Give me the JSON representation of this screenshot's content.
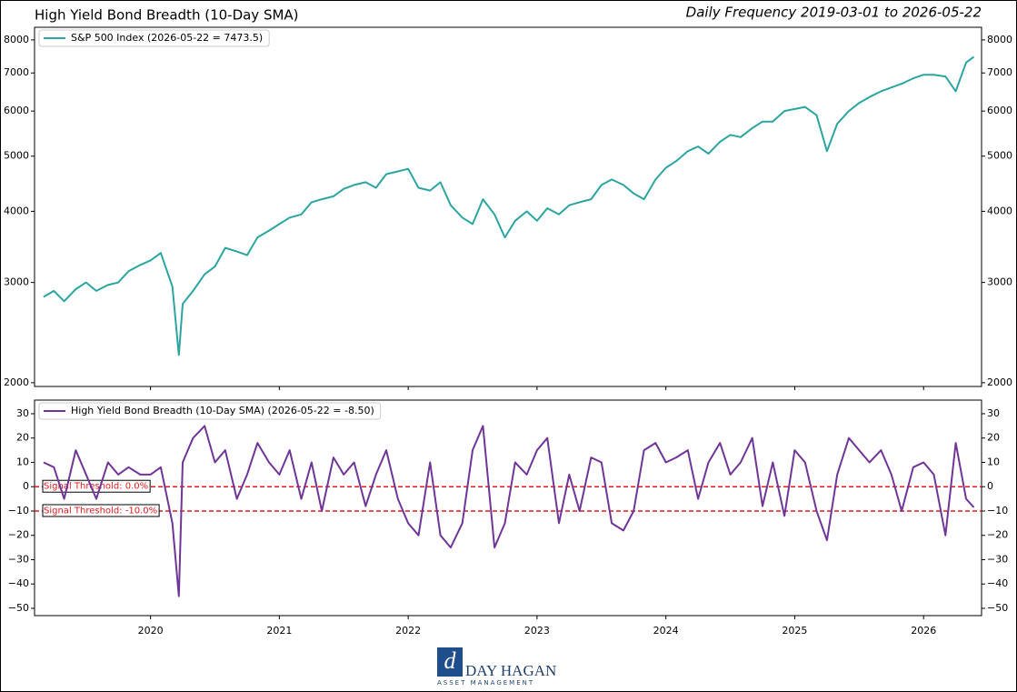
{
  "header": {
    "title": "High Yield Bond Breadth (10-Day SMA)",
    "subtitle": "Daily Frequency 2019-03-01 to 2026-05-22"
  },
  "footer": {
    "logo_name": "DAY HAGAN",
    "logo_tagline": "ASSET MANAGEMENT"
  },
  "chart_data": [
    {
      "type": "line",
      "log_scale": true,
      "legend": "upper left",
      "x": [
        2019.17,
        2019.25,
        2019.33,
        2019.42,
        2019.5,
        2019.58,
        2019.67,
        2019.75,
        2019.83,
        2019.92,
        2020.0,
        2020.08,
        2020.17,
        2020.22,
        2020.25,
        2020.33,
        2020.42,
        2020.5,
        2020.58,
        2020.67,
        2020.75,
        2020.83,
        2020.92,
        2021.0,
        2021.08,
        2021.17,
        2021.25,
        2021.33,
        2021.42,
        2021.5,
        2021.58,
        2021.67,
        2021.75,
        2021.83,
        2021.92,
        2022.0,
        2022.08,
        2022.17,
        2022.25,
        2022.33,
        2022.42,
        2022.5,
        2022.58,
        2022.67,
        2022.75,
        2022.83,
        2022.92,
        2023.0,
        2023.08,
        2023.17,
        2023.25,
        2023.33,
        2023.42,
        2023.5,
        2023.58,
        2023.67,
        2023.75,
        2023.83,
        2023.92,
        2024.0,
        2024.08,
        2024.17,
        2024.25,
        2024.33,
        2024.42,
        2024.5,
        2024.58,
        2024.67,
        2024.75,
        2024.83,
        2024.92,
        2025.0,
        2025.08,
        2025.17,
        2025.25,
        2025.33,
        2025.42,
        2025.5,
        2025.58,
        2025.67,
        2025.75,
        2025.83,
        2025.92,
        2026.0,
        2026.08,
        2026.17,
        2026.25,
        2026.33,
        2026.39
      ],
      "series": [
        {
          "name": "S&P 500 Index (2026-05-22 = 7473.5)",
          "color": "#2ca5a0",
          "values": [
            2830,
            2900,
            2780,
            2920,
            3000,
            2900,
            2970,
            3000,
            3140,
            3220,
            3280,
            3380,
            2950,
            2237,
            2750,
            2900,
            3100,
            3200,
            3450,
            3400,
            3350,
            3600,
            3700,
            3800,
            3900,
            3950,
            4150,
            4200,
            4250,
            4380,
            4450,
            4500,
            4400,
            4650,
            4700,
            4750,
            4400,
            4350,
            4500,
            4100,
            3900,
            3800,
            4200,
            3950,
            3600,
            3850,
            4000,
            3850,
            4050,
            3950,
            4100,
            4150,
            4200,
            4450,
            4550,
            4450,
            4300,
            4200,
            4550,
            4770,
            4900,
            5100,
            5200,
            5050,
            5300,
            5450,
            5400,
            5600,
            5750,
            5750,
            6000,
            6050,
            6100,
            5900,
            5100,
            5700,
            6000,
            6200,
            6350,
            6500,
            6600,
            6700,
            6850,
            6950,
            6950,
            6900,
            6500,
            7300,
            7473.5
          ]
        }
      ],
      "xlim": [
        2019.1,
        2026.45
      ],
      "xticks": [
        2020,
        2021,
        2022,
        2023,
        2024,
        2025,
        2026
      ],
      "ylim": [
        1970,
        8420
      ],
      "yticks": [
        2000,
        3000,
        4000,
        5000,
        6000,
        7000,
        8000
      ]
    },
    {
      "type": "line",
      "legend": "upper left",
      "x": [
        2019.17,
        2019.25,
        2019.33,
        2019.42,
        2019.5,
        2019.58,
        2019.67,
        2019.75,
        2019.83,
        2019.92,
        2020.0,
        2020.08,
        2020.17,
        2020.22,
        2020.25,
        2020.33,
        2020.42,
        2020.5,
        2020.58,
        2020.67,
        2020.75,
        2020.83,
        2020.92,
        2021.0,
        2021.08,
        2021.17,
        2021.25,
        2021.33,
        2021.42,
        2021.5,
        2021.58,
        2021.67,
        2021.75,
        2021.83,
        2021.92,
        2022.0,
        2022.08,
        2022.17,
        2022.25,
        2022.33,
        2022.42,
        2022.5,
        2022.58,
        2022.67,
        2022.75,
        2022.83,
        2022.92,
        2023.0,
        2023.08,
        2023.17,
        2023.25,
        2023.33,
        2023.42,
        2023.5,
        2023.58,
        2023.67,
        2023.75,
        2023.83,
        2023.92,
        2024.0,
        2024.08,
        2024.17,
        2024.25,
        2024.33,
        2024.42,
        2024.5,
        2024.58,
        2024.67,
        2024.75,
        2024.83,
        2024.92,
        2025.0,
        2025.08,
        2025.17,
        2025.25,
        2025.33,
        2025.42,
        2025.5,
        2025.58,
        2025.67,
        2025.75,
        2025.83,
        2025.92,
        2026.0,
        2026.08,
        2026.17,
        2026.25,
        2026.33,
        2026.39
      ],
      "series": [
        {
          "name": "High Yield Bond Breadth (10-Day SMA) (2026-05-22 = -8.50)",
          "color": "#6f3597",
          "values": [
            10,
            8,
            -5,
            15,
            5,
            -5,
            10,
            5,
            8,
            5,
            5,
            8,
            -15,
            -45,
            10,
            20,
            25,
            10,
            15,
            -5,
            5,
            18,
            10,
            5,
            15,
            -5,
            10,
            -10,
            12,
            5,
            10,
            -8,
            5,
            15,
            -5,
            -15,
            -20,
            10,
            -20,
            -25,
            -15,
            15,
            25,
            -25,
            -15,
            10,
            5,
            15,
            20,
            -15,
            5,
            -10,
            12,
            10,
            -15,
            -18,
            -10,
            15,
            18,
            10,
            12,
            15,
            -5,
            10,
            18,
            5,
            10,
            20,
            -8,
            10,
            -12,
            15,
            10,
            -10,
            -22,
            5,
            20,
            15,
            10,
            15,
            5,
            -10,
            8,
            10,
            5,
            -20,
            18,
            -5,
            -8.5
          ]
        }
      ],
      "thresholds": [
        {
          "value": 0,
          "label": "Signal Threshold: 0.0%"
        },
        {
          "value": -10,
          "label": "Signal Threshold: -10.0%"
        }
      ],
      "threshold_color": "#e41a1c",
      "xlim": [
        2019.1,
        2026.45
      ],
      "xticks": [
        2020,
        2021,
        2022,
        2023,
        2024,
        2025,
        2026
      ],
      "ylim": [
        -53,
        35.6
      ],
      "yticks": [
        {
          "value": 30,
          "label": "30"
        },
        {
          "value": 20,
          "label": "20"
        },
        {
          "value": 10,
          "label": "10"
        },
        {
          "value": 0,
          "label": "0"
        },
        {
          "value": -10,
          "label": "−10"
        },
        {
          "value": -20,
          "label": "−20"
        },
        {
          "value": -30,
          "label": "−30"
        },
        {
          "value": -40,
          "label": "−40"
        },
        {
          "value": -50,
          "label": "−50"
        }
      ]
    }
  ]
}
